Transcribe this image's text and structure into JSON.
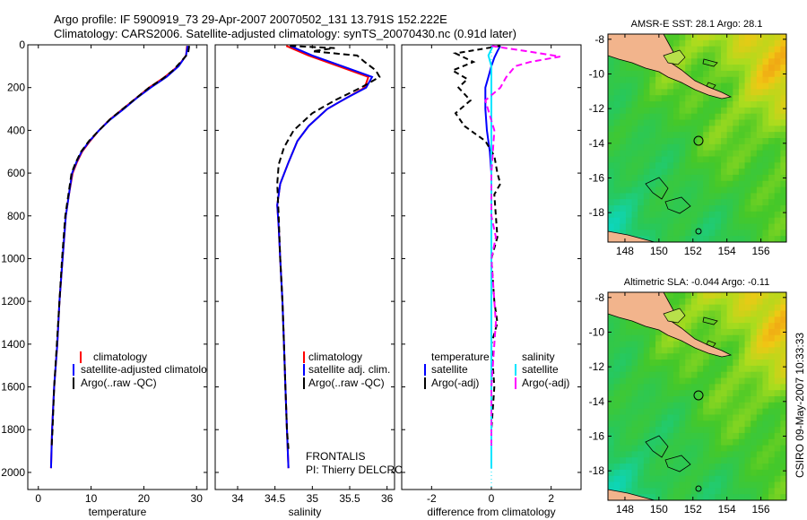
{
  "header": {
    "line1": "Argo profile: IF 5900919_73 29-Apr-2007 20070502_131 13.791S 152.222E",
    "line2": "Climatology: CARS2006. Satellite-adjusted climatology: synTS_20070430.nc (0.91d later)"
  },
  "stamp": "CSIRO 09-May-2007 10:33:33",
  "float_info": {
    "program": "FRONTALIS",
    "pi": "PI: Thierry DELCROIX"
  },
  "colors": {
    "clim": "#ff0000",
    "sat": "#0000ff",
    "argo": "#000000",
    "sal_sat": "#00e5ff",
    "sal_argo": "#ff00ff"
  },
  "chart_data": [
    {
      "type": "line",
      "id": "temperature",
      "xlabel": "temperature",
      "ylabel": "",
      "xlim": [
        -2,
        32
      ],
      "ylim": [
        2080,
        0
      ],
      "xticks": [
        0,
        10,
        20,
        30
      ],
      "yticks": [
        0,
        200,
        400,
        600,
        800,
        1000,
        1200,
        1400,
        1600,
        1800,
        2000
      ],
      "legend": [
        "climatology",
        "satellite-adjusted climatolo",
        "Argo(..raw -QC)"
      ],
      "series": [
        {
          "name": "climatology",
          "color": "#ff0000",
          "dash": "",
          "points": [
            [
              28.2,
              5
            ],
            [
              28.0,
              50
            ],
            [
              26.5,
              100
            ],
            [
              24.0,
              150
            ],
            [
              21.0,
              200
            ],
            [
              18.5,
              250
            ],
            [
              16.0,
              300
            ],
            [
              13.5,
              350
            ],
            [
              11.5,
              400
            ],
            [
              9.8,
              450
            ],
            [
              8.3,
              500
            ],
            [
              7.3,
              550
            ],
            [
              6.5,
              600
            ],
            [
              5.8,
              700
            ],
            [
              5.2,
              800
            ],
            [
              4.6,
              1000
            ],
            [
              4.0,
              1200
            ],
            [
              3.6,
              1400
            ],
            [
              3.0,
              1600
            ],
            [
              2.6,
              1800
            ],
            [
              2.4,
              1980
            ]
          ]
        },
        {
          "name": "satellite-adjusted climatology",
          "color": "#0000ff",
          "dash": "",
          "points": [
            [
              28.3,
              5
            ],
            [
              28.0,
              50
            ],
            [
              26.6,
              100
            ],
            [
              24.3,
              150
            ],
            [
              21.3,
              200
            ],
            [
              18.6,
              250
            ],
            [
              16.2,
              300
            ],
            [
              13.6,
              350
            ],
            [
              11.5,
              400
            ],
            [
              9.7,
              450
            ],
            [
              8.2,
              500
            ],
            [
              7.2,
              550
            ],
            [
              6.4,
              600
            ],
            [
              5.8,
              700
            ],
            [
              5.2,
              800
            ],
            [
              4.6,
              1000
            ],
            [
              4.0,
              1200
            ],
            [
              3.6,
              1400
            ],
            [
              3.0,
              1600
            ],
            [
              2.6,
              1800
            ],
            [
              2.4,
              1980
            ]
          ]
        },
        {
          "name": "Argo(..raw -QC)",
          "color": "#000000",
          "dash": "7,4",
          "points": [
            [
              28.6,
              5
            ],
            [
              28.4,
              40
            ],
            [
              27.0,
              80
            ],
            [
              25.5,
              120
            ],
            [
              23.5,
              160
            ],
            [
              21.0,
              200
            ],
            [
              18.5,
              250
            ],
            [
              16.0,
              300
            ],
            [
              13.5,
              350
            ],
            [
              11.5,
              400
            ],
            [
              9.6,
              450
            ],
            [
              8.1,
              500
            ],
            [
              7.1,
              550
            ],
            [
              6.3,
              600
            ],
            [
              5.7,
              700
            ],
            [
              5.1,
              800
            ],
            [
              4.5,
              1000
            ],
            [
              4.0,
              1200
            ],
            [
              3.5,
              1400
            ],
            [
              3.0,
              1600
            ],
            [
              2.7,
              1800
            ],
            [
              2.5,
              1890
            ]
          ]
        }
      ]
    },
    {
      "type": "line",
      "id": "salinity",
      "xlabel": "salinity",
      "xlim": [
        33.7,
        36.1
      ],
      "ylim": [
        2080,
        0
      ],
      "xticks": [
        34,
        34.5,
        35,
        35.5,
        36
      ],
      "legend": [
        "climatology",
        "satellite adj. clim.",
        "Argo(..raw -QC)"
      ],
      "series": [
        {
          "name": "climatology",
          "color": "#ff0000",
          "dash": "",
          "points": [
            [
              34.65,
              5
            ],
            [
              34.95,
              50
            ],
            [
              35.35,
              100
            ],
            [
              35.75,
              150
            ],
            [
              35.7,
              200
            ],
            [
              35.45,
              250
            ],
            [
              35.2,
              300
            ],
            [
              34.95,
              380
            ],
            [
              34.8,
              450
            ],
            [
              34.68,
              550
            ],
            [
              34.57,
              650
            ],
            [
              34.53,
              750
            ],
            [
              34.55,
              850
            ],
            [
              34.57,
              1000
            ],
            [
              34.6,
              1200
            ],
            [
              34.62,
              1400
            ],
            [
              34.64,
              1600
            ],
            [
              34.66,
              1800
            ],
            [
              34.68,
              1980
            ]
          ]
        },
        {
          "name": "satellite adj. clim.",
          "color": "#0000ff",
          "dash": "",
          "points": [
            [
              34.7,
              5
            ],
            [
              35.0,
              50
            ],
            [
              35.4,
              100
            ],
            [
              35.8,
              150
            ],
            [
              35.72,
              200
            ],
            [
              35.45,
              250
            ],
            [
              35.2,
              300
            ],
            [
              34.95,
              380
            ],
            [
              34.8,
              450
            ],
            [
              34.68,
              550
            ],
            [
              34.57,
              650
            ],
            [
              34.53,
              750
            ],
            [
              34.55,
              850
            ],
            [
              34.57,
              1000
            ],
            [
              34.6,
              1200
            ],
            [
              34.62,
              1400
            ],
            [
              34.64,
              1600
            ],
            [
              34.66,
              1800
            ],
            [
              34.68,
              1980
            ]
          ]
        },
        {
          "name": "Argo(..raw -QC)",
          "color": "#000000",
          "dash": "7,4",
          "points": [
            [
              34.7,
              5
            ],
            [
              35.3,
              15
            ],
            [
              35.0,
              30
            ],
            [
              35.6,
              50
            ],
            [
              35.7,
              80
            ],
            [
              35.85,
              120
            ],
            [
              35.9,
              150
            ],
            [
              35.65,
              200
            ],
            [
              35.3,
              260
            ],
            [
              35.0,
              320
            ],
            [
              34.75,
              400
            ],
            [
              34.62,
              480
            ],
            [
              34.55,
              560
            ],
            [
              34.53,
              650
            ],
            [
              34.55,
              800
            ],
            [
              34.57,
              1000
            ],
            [
              34.6,
              1200
            ],
            [
              34.62,
              1400
            ],
            [
              34.64,
              1600
            ],
            [
              34.66,
              1800
            ],
            [
              34.68,
              1890
            ]
          ]
        }
      ]
    },
    {
      "type": "line",
      "id": "difference",
      "xlabel": "difference from climatology",
      "xlim": [
        -3,
        3
      ],
      "ylim": [
        2080,
        0
      ],
      "xticks": [
        -2,
        0,
        2
      ],
      "legend_left_title": "temperature",
      "legend_right_title": "salinity",
      "legend": [
        "satellite",
        "Argo(-adj)",
        "satellite",
        "Argo(-adj)"
      ],
      "series": [
        {
          "name": "temperature satellite",
          "color": "#0000ff",
          "dash": "",
          "points": [
            [
              0.3,
              5
            ],
            [
              0.2,
              30
            ],
            [
              0.1,
              60
            ],
            [
              0.0,
              100
            ],
            [
              -0.1,
              150
            ],
            [
              -0.2,
              200
            ],
            [
              -0.2,
              300
            ],
            [
              -0.15,
              400
            ],
            [
              -0.05,
              500
            ],
            [
              0.0,
              600
            ],
            [
              0.0,
              800
            ],
            [
              0.0,
              1000
            ],
            [
              0.0,
              1400
            ],
            [
              0.0,
              1980
            ]
          ]
        },
        {
          "name": "temperature Argo(-adj)",
          "color": "#000000",
          "dash": "6,4",
          "points": [
            [
              0.3,
              5
            ],
            [
              -1.2,
              40
            ],
            [
              -0.6,
              80
            ],
            [
              -1.3,
              120
            ],
            [
              -0.8,
              160
            ],
            [
              -1.1,
              200
            ],
            [
              -0.7,
              260
            ],
            [
              -1.2,
              320
            ],
            [
              -0.9,
              380
            ],
            [
              -0.2,
              450
            ],
            [
              0.1,
              520
            ],
            [
              0.2,
              600
            ],
            [
              0.3,
              650
            ],
            [
              0.1,
              700
            ],
            [
              0.2,
              900
            ],
            [
              0.0,
              1000
            ],
            [
              0.1,
              1200
            ],
            [
              0.2,
              1300
            ],
            [
              0.0,
              1400
            ],
            [
              0.1,
              1600
            ],
            [
              0.0,
              1800
            ],
            [
              0.0,
              1890
            ]
          ]
        },
        {
          "name": "salinity satellite",
          "color": "#00e5ff",
          "dash": "",
          "points": [
            [
              0.05,
              5
            ],
            [
              -0.1,
              50
            ],
            [
              0.0,
              100
            ],
            [
              0.0,
              300
            ],
            [
              0.0,
              1000
            ],
            [
              0.0,
              1980
            ]
          ]
        },
        {
          "name": "salinity Argo(-adj)",
          "color": "#ff00ff",
          "dash": "7,4",
          "points": [
            [
              0.0,
              5
            ],
            [
              1.2,
              30
            ],
            [
              2.3,
              55
            ],
            [
              1.3,
              80
            ],
            [
              0.8,
              100
            ],
            [
              0.5,
              150
            ],
            [
              0.3,
              200
            ],
            [
              -0.2,
              260
            ],
            [
              0.1,
              400
            ],
            [
              0.0,
              600
            ],
            [
              0.0,
              800
            ],
            [
              0.15,
              900
            ],
            [
              0.0,
              1000
            ],
            [
              0.15,
              1300
            ],
            [
              0.1,
              1400
            ],
            [
              0.0,
              1600
            ],
            [
              0.0,
              1800
            ],
            [
              0.0,
              1890
            ]
          ]
        }
      ]
    },
    {
      "type": "heatmap",
      "id": "sst_map",
      "title": "AMSR-E SST: 28.1 Argo: 28.1",
      "xlim": [
        147,
        157.5
      ],
      "ylim": [
        -19.7,
        -7.7
      ],
      "xticks": [
        148,
        150,
        152,
        154,
        156
      ],
      "yticks": [
        -8,
        -10,
        -12,
        -14,
        -16,
        -18
      ],
      "profile_position": [
        152.222,
        -13.791
      ]
    },
    {
      "type": "heatmap",
      "id": "sla_map",
      "title": "Altimetric SLA: -0.044 Argo: -0.11",
      "xlim": [
        147,
        157.5
      ],
      "ylim": [
        -19.7,
        -7.7
      ],
      "xticks": [
        148,
        150,
        152,
        154,
        156
      ],
      "yticks": [
        -8,
        -10,
        -12,
        -14,
        -16,
        -18
      ],
      "profile_position": [
        152.222,
        -13.791
      ]
    }
  ]
}
